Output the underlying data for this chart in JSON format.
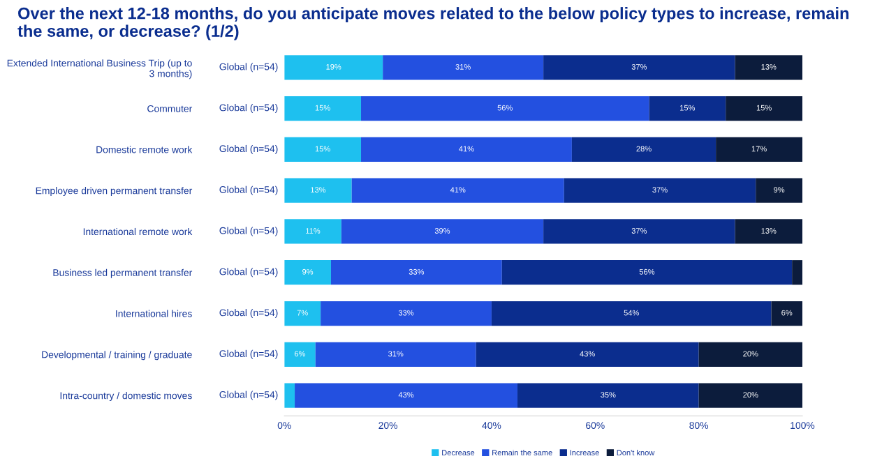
{
  "chart_data": {
    "type": "bar",
    "orientation": "horizontal",
    "stacked": true,
    "title": "Over the next 12-18 months, do you anticipate moves related to the below policy types to increase, remain the same, or decrease? (1/2)",
    "categories": [
      "Extended International Business Trip (up to 3 months)",
      "Commuter",
      "Domestic remote work",
      "Employee driven permanent transfer",
      "International remote work",
      "Business led permanent transfer",
      "International hires",
      "Developmental / training / graduate",
      "Intra-country / domestic moves"
    ],
    "annotations": [
      "Global (n=54)",
      "Global (n=54)",
      "Global (n=54)",
      "Global (n=54)",
      "Global (n=54)",
      "Global (n=54)",
      "Global (n=54)",
      "Global (n=54)",
      "Global (n=54)"
    ],
    "series": [
      {
        "name": "Decrease",
        "color": "#1ec0ef",
        "values": [
          19,
          14.8,
          14.8,
          13,
          11,
          9,
          7,
          6,
          2
        ],
        "value_labels": [
          "19%",
          "15%",
          "15%",
          "13%",
          "11%",
          "9%",
          "7%",
          "6%",
          null
        ]
      },
      {
        "name": "Remain the same",
        "color": "#2350e0",
        "values": [
          31,
          55.6,
          40.7,
          41,
          39,
          33,
          33,
          31,
          43
        ],
        "value_labels": [
          "31%",
          "56%",
          "41%",
          "41%",
          "39%",
          "33%",
          "33%",
          "31%",
          "43%"
        ]
      },
      {
        "name": "Increase",
        "color": "#0b2d8e",
        "values": [
          37,
          14.8,
          27.8,
          37,
          37,
          56,
          54,
          43,
          35
        ],
        "value_labels": [
          "37%",
          "15%",
          "28%",
          "37%",
          "37%",
          "56%",
          "54%",
          "43%",
          "35%"
        ]
      },
      {
        "name": "Don't know",
        "color": "#0c1c3c",
        "values": [
          13,
          14.8,
          16.7,
          9,
          13,
          2,
          6,
          20,
          20
        ],
        "value_labels": [
          "13%",
          "15%",
          "17%",
          "9%",
          "13%",
          null,
          "6%",
          "20%",
          "20%"
        ]
      }
    ],
    "xlim": [
      0,
      100
    ],
    "xticks": [
      {
        "value": 0,
        "label": "0%"
      },
      {
        "value": 20,
        "label": "20%"
      },
      {
        "value": 40,
        "label": "40%"
      },
      {
        "value": 60,
        "label": "60%"
      },
      {
        "value": 80,
        "label": "80%"
      },
      {
        "value": 100,
        "label": "100%"
      }
    ],
    "grid": false,
    "legend": "bottom"
  }
}
